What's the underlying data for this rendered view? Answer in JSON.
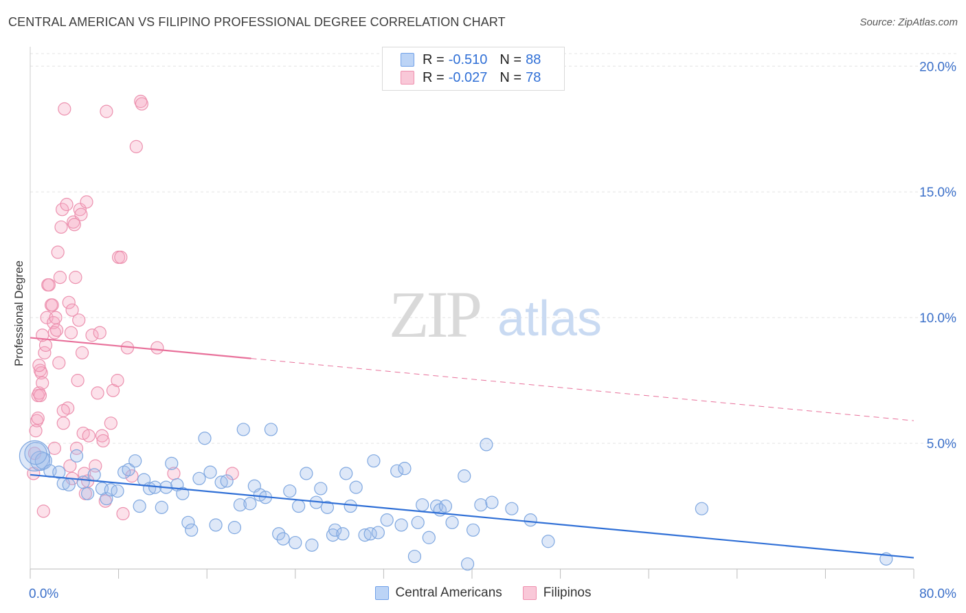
{
  "header": {
    "title": "CENTRAL AMERICAN VS FILIPINO PROFESSIONAL DEGREE CORRELATION CHART",
    "source": "Source: ZipAtlas.com"
  },
  "watermark": {
    "zip": "ZIP",
    "atlas": "atlas"
  },
  "legend": {
    "rows": [
      {
        "r_label": "R =",
        "r_value": "-0.510",
        "n_label": "N =",
        "n_value": "88",
        "color": "#6fa0e8",
        "fill": "#bcd4f6"
      },
      {
        "r_label": "R =",
        "r_value": "-0.027",
        "n_label": "N =",
        "n_value": "78",
        "color": "#ef8fae",
        "fill": "#f9c8d8"
      }
    ]
  },
  "colors": {
    "blue_point_fill": "rgba(160,190,235,0.35)",
    "blue_point_stroke": "#7ea7e0",
    "pink_point_fill": "rgba(245,170,195,0.35)",
    "pink_point_stroke": "#ec90ae",
    "blue_line": "#2f6fd6",
    "pink_line": "#e8709a",
    "axis_text": "#3a6fc9",
    "grid": "#e3e3e3"
  },
  "chart_data": {
    "type": "scatter",
    "title": "CENTRAL AMERICAN VS FILIPINO PROFESSIONAL DEGREE CORRELATION CHART",
    "xlabel": "",
    "ylabel": "Professional Degree",
    "xlim": [
      0,
      80
    ],
    "ylim": [
      0,
      20.5
    ],
    "x_tick_labels": [
      "0.0%",
      "80.0%"
    ],
    "y_ticks": [
      5,
      10,
      15,
      20
    ],
    "y_tick_labels": [
      "5.0%",
      "10.0%",
      "15.0%",
      "20.0%"
    ],
    "grid": true,
    "legend_position": "top-center",
    "series": [
      {
        "name": "Central Americans",
        "trend": {
          "x0": 0,
          "y0": 3.75,
          "x1": 80,
          "y1": 0.45,
          "dashed_from": null
        },
        "points": [
          [
            0.4,
            4.5
          ],
          [
            0.9,
            4.3
          ],
          [
            1.2,
            4.3
          ],
          [
            1.8,
            3.9
          ],
          [
            2.6,
            3.85
          ],
          [
            3.0,
            3.4
          ],
          [
            3.5,
            3.35
          ],
          [
            4.2,
            4.5
          ],
          [
            4.8,
            3.45
          ],
          [
            5.2,
            3.0
          ],
          [
            5.8,
            3.75
          ],
          [
            6.5,
            3.2
          ],
          [
            6.9,
            2.8
          ],
          [
            7.3,
            3.15
          ],
          [
            7.9,
            3.1
          ],
          [
            8.5,
            3.85
          ],
          [
            8.9,
            3.95
          ],
          [
            9.5,
            4.3
          ],
          [
            9.9,
            2.5
          ],
          [
            10.3,
            3.55
          ],
          [
            10.8,
            3.2
          ],
          [
            11.3,
            3.25
          ],
          [
            11.9,
            2.45
          ],
          [
            12.3,
            3.25
          ],
          [
            12.8,
            4.2
          ],
          [
            13.3,
            3.35
          ],
          [
            13.8,
            3.0
          ],
          [
            14.3,
            1.85
          ],
          [
            14.6,
            1.55
          ],
          [
            15.3,
            3.6
          ],
          [
            15.8,
            5.2
          ],
          [
            16.3,
            3.85
          ],
          [
            16.8,
            1.75
          ],
          [
            17.3,
            3.45
          ],
          [
            17.8,
            3.5
          ],
          [
            18.5,
            1.65
          ],
          [
            19.0,
            2.55
          ],
          [
            19.3,
            5.55
          ],
          [
            19.9,
            2.6
          ],
          [
            20.3,
            3.3
          ],
          [
            20.8,
            2.95
          ],
          [
            21.3,
            2.85
          ],
          [
            21.8,
            5.55
          ],
          [
            22.5,
            1.4
          ],
          [
            22.9,
            1.2
          ],
          [
            23.5,
            3.1
          ],
          [
            24.0,
            1.05
          ],
          [
            24.3,
            2.5
          ],
          [
            25.0,
            3.8
          ],
          [
            25.5,
            0.95
          ],
          [
            25.9,
            2.65
          ],
          [
            26.3,
            3.2
          ],
          [
            26.9,
            2.45
          ],
          [
            27.4,
            1.35
          ],
          [
            27.6,
            1.55
          ],
          [
            28.3,
            1.4
          ],
          [
            28.6,
            3.8
          ],
          [
            29.0,
            2.5
          ],
          [
            29.5,
            3.25
          ],
          [
            30.3,
            1.35
          ],
          [
            30.8,
            1.4
          ],
          [
            31.1,
            4.3
          ],
          [
            31.5,
            1.45
          ],
          [
            32.3,
            1.95
          ],
          [
            33.2,
            3.9
          ],
          [
            33.6,
            1.75
          ],
          [
            33.9,
            4.0
          ],
          [
            34.8,
            0.5
          ],
          [
            35.1,
            1.85
          ],
          [
            35.5,
            2.55
          ],
          [
            36.1,
            1.25
          ],
          [
            36.8,
            2.5
          ],
          [
            37.1,
            2.35
          ],
          [
            37.6,
            2.5
          ],
          [
            38.2,
            1.85
          ],
          [
            39.3,
            3.7
          ],
          [
            39.6,
            0.2
          ],
          [
            40.1,
            1.55
          ],
          [
            40.8,
            2.55
          ],
          [
            41.3,
            4.95
          ],
          [
            41.8,
            2.65
          ],
          [
            43.6,
            2.4
          ],
          [
            45.3,
            1.95
          ],
          [
            46.9,
            1.1
          ],
          [
            60.8,
            2.4
          ],
          [
            77.5,
            0.4
          ],
          [
            0.5,
            4.6
          ]
        ]
      },
      {
        "name": "Filipinos",
        "trend": {
          "x0": 0,
          "y0": 9.2,
          "x1": 80,
          "y1": 5.9,
          "dashed_from": 20
        },
        "points": [
          [
            0.3,
            3.8
          ],
          [
            0.4,
            4.6
          ],
          [
            0.5,
            5.5
          ],
          [
            0.6,
            5.9
          ],
          [
            0.7,
            6.9
          ],
          [
            0.8,
            7.0
          ],
          [
            0.9,
            7.9
          ],
          [
            1.0,
            7.8
          ],
          [
            1.1,
            7.4
          ],
          [
            1.3,
            8.6
          ],
          [
            1.4,
            8.9
          ],
          [
            1.5,
            10.0
          ],
          [
            1.6,
            11.3
          ],
          [
            1.7,
            11.3
          ],
          [
            1.9,
            10.5
          ],
          [
            2.0,
            10.5
          ],
          [
            2.1,
            9.8
          ],
          [
            2.2,
            9.4
          ],
          [
            2.3,
            10.0
          ],
          [
            2.4,
            9.5
          ],
          [
            2.5,
            12.6
          ],
          [
            2.6,
            8.2
          ],
          [
            2.7,
            11.6
          ],
          [
            2.8,
            13.6
          ],
          [
            2.9,
            14.3
          ],
          [
            3.0,
            5.8
          ],
          [
            3.1,
            18.3
          ],
          [
            3.3,
            14.5
          ],
          [
            3.4,
            6.4
          ],
          [
            3.5,
            10.6
          ],
          [
            3.6,
            4.1
          ],
          [
            3.7,
            9.4
          ],
          [
            3.8,
            10.3
          ],
          [
            3.9,
            13.8
          ],
          [
            4.0,
            13.7
          ],
          [
            4.1,
            11.6
          ],
          [
            4.2,
            4.8
          ],
          [
            4.3,
            7.5
          ],
          [
            4.4,
            9.9
          ],
          [
            4.5,
            14.3
          ],
          [
            4.6,
            14.1
          ],
          [
            4.7,
            8.6
          ],
          [
            4.8,
            5.4
          ],
          [
            4.9,
            3.8
          ],
          [
            5.0,
            3.0
          ],
          [
            5.2,
            3.5
          ],
          [
            5.3,
            5.3
          ],
          [
            5.6,
            9.3
          ],
          [
            5.9,
            4.1
          ],
          [
            6.1,
            7.0
          ],
          [
            6.3,
            9.4
          ],
          [
            6.5,
            5.3
          ],
          [
            6.6,
            5.1
          ],
          [
            6.8,
            2.7
          ],
          [
            6.9,
            18.2
          ],
          [
            7.3,
            5.8
          ],
          [
            7.5,
            7.1
          ],
          [
            7.9,
            7.5
          ],
          [
            8.0,
            12.4
          ],
          [
            8.2,
            12.4
          ],
          [
            8.4,
            2.2
          ],
          [
            8.8,
            8.8
          ],
          [
            9.2,
            3.7
          ],
          [
            9.6,
            16.8
          ],
          [
            10.0,
            18.6
          ],
          [
            10.1,
            18.5
          ],
          [
            11.5,
            8.8
          ],
          [
            13.0,
            3.8
          ],
          [
            1.2,
            2.3
          ],
          [
            0.9,
            6.9
          ],
          [
            0.7,
            6.0
          ],
          [
            0.8,
            8.1
          ],
          [
            1.1,
            9.3
          ],
          [
            2.2,
            4.8
          ],
          [
            3.0,
            6.3
          ],
          [
            3.8,
            3.6
          ],
          [
            18.3,
            3.8
          ],
          [
            5.1,
            14.6
          ]
        ]
      }
    ]
  }
}
